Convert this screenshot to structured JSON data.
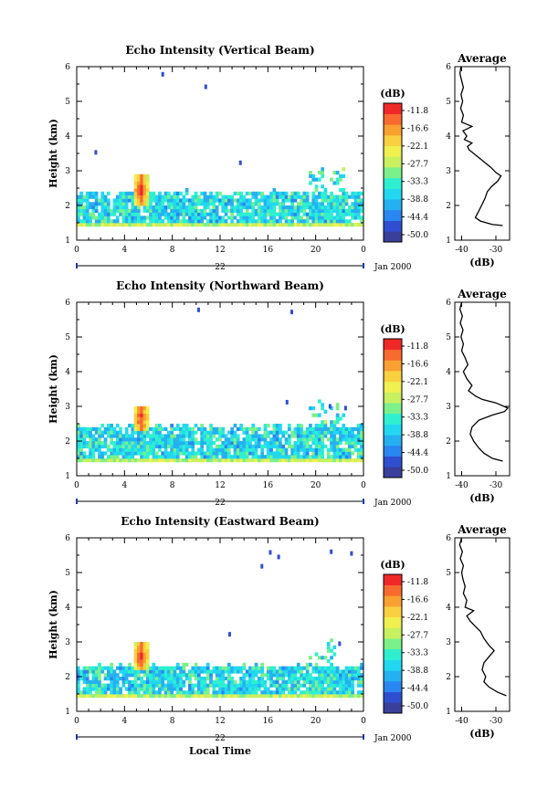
{
  "chart_data": [
    {
      "type": "heatmap",
      "title": "Echo Intensity (Vertical Beam)",
      "ylabel": "Height (km)",
      "xlabel": "",
      "x_ticks": [
        "0",
        "4",
        "8",
        "12",
        "16",
        "20",
        "0"
      ],
      "y_ticks": [
        "1",
        "2",
        "3",
        "4",
        "5",
        "6"
      ],
      "xlim": [
        0,
        24
      ],
      "ylim": [
        1,
        6
      ],
      "date_label": "22",
      "date_suffix": "Jan 2000",
      "colorbar": {
        "label": "(dB)",
        "ticks": [
          "-11.8",
          "-16.6",
          "-22.1",
          "-27.7",
          "-33.3",
          "-38.8",
          "-44.4",
          "-50.0"
        ]
      },
      "features": {
        "base_band_km": [
          1.42,
          2.38
        ],
        "core_time_h": 5.4,
        "core_km": [
          2.0,
          2.9
        ],
        "speckles": [
          [
            7.2,
            5.78
          ],
          [
            10.8,
            5.42
          ],
          [
            13.7,
            3.23
          ],
          [
            1.6,
            3.53
          ]
        ],
        "late_plume_time_h": [
          19.5,
          22.5
        ]
      },
      "profile": {
        "title": "Average",
        "xlabel": "(dB)",
        "x_ticks": [
          "-40",
          "-30"
        ],
        "xlim": [
          -42,
          -26
        ],
        "ylim": [
          1,
          6
        ],
        "points": [
          [
            -40.2,
            6.0
          ],
          [
            -40.5,
            5.8
          ],
          [
            -40.0,
            5.6
          ],
          [
            -39.5,
            5.4
          ],
          [
            -40.2,
            5.2
          ],
          [
            -39.7,
            5.0
          ],
          [
            -40.3,
            4.8
          ],
          [
            -39.5,
            4.6
          ],
          [
            -40.0,
            4.4
          ],
          [
            -37.0,
            4.28
          ],
          [
            -39.6,
            4.15
          ],
          [
            -38.5,
            4.0
          ],
          [
            -39.2,
            3.9
          ],
          [
            -37.0,
            3.8
          ],
          [
            -38.3,
            3.7
          ],
          [
            -37.8,
            3.6
          ],
          [
            -36.5,
            3.5
          ],
          [
            -34.0,
            3.3
          ],
          [
            -31.5,
            3.1
          ],
          [
            -30.0,
            2.95
          ],
          [
            -28.5,
            2.85
          ],
          [
            -29.5,
            2.7
          ],
          [
            -31.2,
            2.55
          ],
          [
            -32.5,
            2.4
          ],
          [
            -33.2,
            2.2
          ],
          [
            -34.2,
            2.0
          ],
          [
            -35.2,
            1.8
          ],
          [
            -36.0,
            1.65
          ],
          [
            -34.5,
            1.55
          ],
          [
            -31.0,
            1.45
          ],
          [
            -28.0,
            1.42
          ]
        ]
      }
    },
    {
      "type": "heatmap",
      "title": "Echo Intensity (Northward Beam)",
      "ylabel": "Height (km)",
      "xlabel": "",
      "x_ticks": [
        "0",
        "4",
        "8",
        "12",
        "16",
        "20",
        "0"
      ],
      "y_ticks": [
        "1",
        "2",
        "3",
        "4",
        "5",
        "6"
      ],
      "xlim": [
        0,
        24
      ],
      "ylim": [
        1,
        6
      ],
      "date_label": "22",
      "date_suffix": "Jan 2000",
      "colorbar": {
        "label": "(dB)",
        "ticks": [
          "-11.8",
          "-16.6",
          "-22.1",
          "-27.7",
          "-33.3",
          "-38.8",
          "-44.4",
          "-50.0"
        ]
      },
      "features": {
        "base_band_km": [
          1.42,
          2.45
        ],
        "core_time_h": 5.4,
        "core_km": [
          2.3,
          3.05
        ],
        "speckles": [
          [
            10.2,
            5.78
          ],
          [
            18.0,
            5.72
          ],
          [
            17.6,
            3.12
          ],
          [
            21.2,
            3.0
          ],
          [
            22.5,
            2.95
          ]
        ],
        "late_plume_time_h": [
          19.5,
          22.5
        ]
      },
      "profile": {
        "title": "Average",
        "xlabel": "(dB)",
        "x_ticks": [
          "-40",
          "-30"
        ],
        "xlim": [
          -42,
          -26
        ],
        "ylim": [
          1,
          6
        ],
        "points": [
          [
            -40.0,
            6.0
          ],
          [
            -40.5,
            5.8
          ],
          [
            -39.8,
            5.6
          ],
          [
            -40.4,
            5.4
          ],
          [
            -39.6,
            5.2
          ],
          [
            -40.2,
            5.0
          ],
          [
            -39.5,
            4.8
          ],
          [
            -40.0,
            4.6
          ],
          [
            -39.0,
            4.4
          ],
          [
            -38.2,
            4.2
          ],
          [
            -39.5,
            4.0
          ],
          [
            -38.5,
            3.8
          ],
          [
            -37.0,
            3.6
          ],
          [
            -38.0,
            3.45
          ],
          [
            -36.0,
            3.3
          ],
          [
            -34.0,
            3.2
          ],
          [
            -30.0,
            3.1
          ],
          [
            -26.5,
            2.95
          ],
          [
            -27.5,
            2.85
          ],
          [
            -31.0,
            2.75
          ],
          [
            -35.0,
            2.6
          ],
          [
            -37.0,
            2.4
          ],
          [
            -37.5,
            2.2
          ],
          [
            -36.5,
            2.0
          ],
          [
            -35.0,
            1.8
          ],
          [
            -33.5,
            1.65
          ],
          [
            -31.0,
            1.5
          ],
          [
            -28.0,
            1.42
          ]
        ]
      }
    },
    {
      "type": "heatmap",
      "title": "Echo Intensity (Eastward Beam)",
      "ylabel": "Height (km)",
      "xlabel": "Local Time",
      "x_ticks": [
        "0",
        "4",
        "8",
        "12",
        "16",
        "20",
        "0"
      ],
      "y_ticks": [
        "1",
        "2",
        "3",
        "4",
        "5",
        "6"
      ],
      "xlim": [
        0,
        24
      ],
      "ylim": [
        1,
        6
      ],
      "date_label": "22",
      "date_suffix": "Jan 2000",
      "colorbar": {
        "label": "(dB)",
        "ticks": [
          "-11.8",
          "-16.6",
          "-22.1",
          "-27.7",
          "-33.3",
          "-38.8",
          "-44.4",
          "-50.0"
        ]
      },
      "features": {
        "base_band_km": [
          1.42,
          2.32
        ],
        "core_time_h": 5.4,
        "core_km": [
          2.2,
          3.0
        ],
        "speckles": [
          [
            16.2,
            5.58
          ],
          [
            16.9,
            5.45
          ],
          [
            21.3,
            5.6
          ],
          [
            23.0,
            5.55
          ],
          [
            15.5,
            5.18
          ],
          [
            12.8,
            3.22
          ],
          [
            22.0,
            2.95
          ]
        ],
        "late_plume_time_h": [
          19.3,
          21.8
        ]
      },
      "profile": {
        "title": "Average",
        "xlabel": "(dB)",
        "x_ticks": [
          "-40",
          "-30"
        ],
        "xlim": [
          -42,
          -26
        ],
        "ylim": [
          1,
          6
        ],
        "points": [
          [
            -40.0,
            6.0
          ],
          [
            -40.6,
            5.8
          ],
          [
            -39.8,
            5.6
          ],
          [
            -40.4,
            5.4
          ],
          [
            -39.5,
            5.2
          ],
          [
            -40.0,
            5.0
          ],
          [
            -39.6,
            4.8
          ],
          [
            -39.0,
            4.6
          ],
          [
            -39.5,
            4.4
          ],
          [
            -38.5,
            4.2
          ],
          [
            -39.0,
            4.0
          ],
          [
            -36.5,
            3.9
          ],
          [
            -38.5,
            3.75
          ],
          [
            -37.5,
            3.6
          ],
          [
            -36.0,
            3.45
          ],
          [
            -34.5,
            3.3
          ],
          [
            -33.5,
            3.1
          ],
          [
            -32.0,
            2.9
          ],
          [
            -30.5,
            2.75
          ],
          [
            -31.8,
            2.6
          ],
          [
            -33.5,
            2.4
          ],
          [
            -34.0,
            2.2
          ],
          [
            -33.0,
            2.0
          ],
          [
            -33.5,
            1.85
          ],
          [
            -32.0,
            1.7
          ],
          [
            -29.5,
            1.55
          ],
          [
            -27.0,
            1.45
          ]
        ]
      }
    }
  ]
}
